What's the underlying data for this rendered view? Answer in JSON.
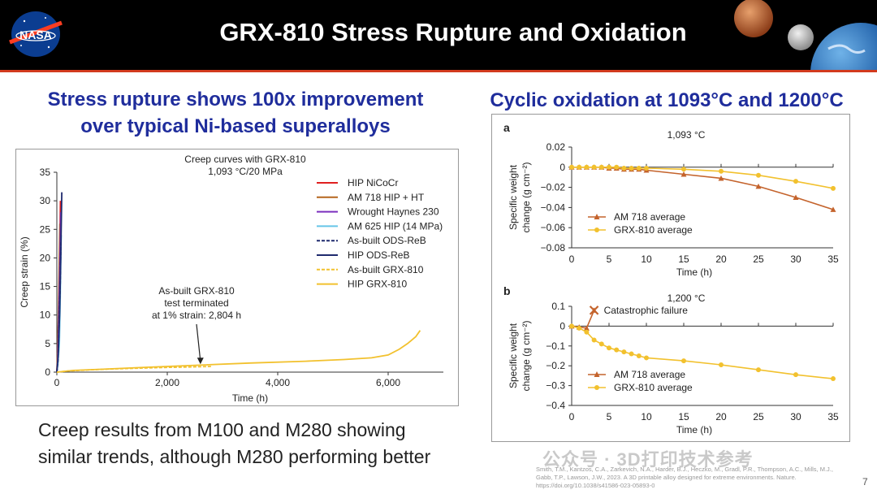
{
  "header": {
    "title": "GRX-810 Stress Rupture and Oxidation",
    "logo_text": "NASA",
    "logo_icon": "nasa-meatball-logo",
    "planets_icon": "planets-mars-moon-earth"
  },
  "left": {
    "subtitle_line1": "Stress rupture shows 100x improvement",
    "subtitle_line2": "over typical Ni-based superalloys",
    "bottom_line1": "Creep results from M100 and M280 showing",
    "bottom_line2": "similar trends, although M280 performing better"
  },
  "right": {
    "subtitle": "Cyclic oxidation at 1093°C and 1200°C"
  },
  "citation": {
    "line1": "Smith, T.M., Kantzos, C.A., Zarkevich, N.A., Harder, B.J., Heczko, M., Gradl, P.R., Thompson, A.C., Mills, M.J.,",
    "line2": "Gabb, T.P., Lawson, J.W., 2023. A 3D printable alloy designed for extreme environments. Nature.",
    "line3": "https://doi.org/10.1038/s41586-023-05893-0"
  },
  "watermark": "公众号 · 3D打印技术参考",
  "page_number": "7",
  "colors": {
    "title_blue": "#1f2d9c",
    "header_bg": "#000000",
    "accent_red": "#d23b1e"
  },
  "chart_data": [
    {
      "type": "line",
      "title": "Creep curves with GRX-810",
      "subtitle": "1,093 °C/20 MPa",
      "xlabel": "Time (h)",
      "ylabel": "Creep strain (%)",
      "xlim": [
        0,
        7000
      ],
      "ylim": [
        0,
        35
      ],
      "xticks": [
        0,
        2000,
        4000,
        6000
      ],
      "xtick_labels": [
        "0",
        "2,000",
        "4,000",
        "6,000"
      ],
      "yticks": [
        0,
        5,
        10,
        15,
        20,
        25,
        30,
        35
      ],
      "legend_position": "top-right",
      "annotation": [
        "As-built GRX-810",
        "test terminated",
        "at 1% strain: 2,804 h"
      ],
      "annotation_point": [
        2600,
        1.1
      ],
      "series": [
        {
          "name": "HIP NiCoCr",
          "color": "#e02020",
          "dash": "",
          "x": [
            0,
            10,
            30,
            50,
            65
          ],
          "y": [
            0,
            2,
            8,
            18,
            30
          ]
        },
        {
          "name": "AM 718 HIP + HT",
          "color": "#b5651d",
          "dash": "",
          "x": [
            0,
            10,
            25,
            40,
            55
          ],
          "y": [
            0,
            3,
            9,
            17,
            26
          ]
        },
        {
          "name": "Wrought Haynes 230",
          "color": "#7b2fbe",
          "dash": "",
          "x": [
            0,
            15,
            30,
            50,
            70
          ],
          "y": [
            0,
            2,
            7,
            16,
            28
          ]
        },
        {
          "name": "AM 625 HIP (14 MPa)",
          "color": "#66c5e8",
          "dash": "",
          "x": [
            0,
            20,
            45,
            60,
            80
          ],
          "y": [
            0,
            1.5,
            5,
            12,
            24
          ]
        },
        {
          "name": "As-built ODS-ReB",
          "color": "#1f2a6e",
          "dash": "4,2",
          "x": [
            0,
            20,
            40,
            60,
            75
          ],
          "y": [
            0,
            2,
            8,
            15,
            23
          ]
        },
        {
          "name": "HIP ODS-ReB",
          "color": "#1f2a6e",
          "dash": "",
          "x": [
            0,
            25,
            50,
            70,
            90
          ],
          "y": [
            0,
            3,
            10,
            20,
            31.5
          ]
        },
        {
          "name": "As-built GRX-810",
          "color": "#f2c12e",
          "dash": "4,2",
          "x": [
            0,
            200,
            600,
            1000,
            1500,
            2000,
            2500,
            2804
          ],
          "y": [
            0,
            0.2,
            0.4,
            0.55,
            0.7,
            0.82,
            0.93,
            1.0
          ]
        },
        {
          "name": "HIP GRX-810",
          "color": "#f2c12e",
          "dash": "",
          "x": [
            0,
            300,
            800,
            1500,
            2500,
            3500,
            4500,
            5200,
            5700,
            6000,
            6200,
            6350,
            6500,
            6580
          ],
          "y": [
            0,
            0.3,
            0.5,
            0.8,
            1.2,
            1.6,
            1.9,
            2.2,
            2.5,
            3.0,
            4.0,
            5.0,
            6.2,
            7.3
          ]
        }
      ]
    },
    {
      "type": "line",
      "panel": "a",
      "title": "1,093 °C",
      "xlabel": "Time (h)",
      "ylabel": "Specific weight change (g cm⁻²)",
      "xlim": [
        0,
        35
      ],
      "ylim": [
        -0.08,
        0.02
      ],
      "xticks": [
        0,
        5,
        10,
        15,
        20,
        25,
        30,
        35
      ],
      "yticks": [
        0.02,
        0,
        -0.02,
        -0.04,
        -0.06,
        -0.08
      ],
      "ytick_labels": [
        "0.02",
        "0",
        "−0.02",
        "−0.04",
        "−0.06",
        "−0.08"
      ],
      "legend_position": "bottom-left",
      "series": [
        {
          "name": "AM 718 average",
          "color": "#c4632c",
          "marker": "triangle",
          "x": [
            0,
            1,
            2,
            3,
            4,
            5,
            6,
            7,
            8,
            9,
            10,
            15,
            20,
            25,
            30,
            35
          ],
          "y": [
            0,
            0,
            0,
            0,
            0,
            -0.001,
            -0.001,
            -0.002,
            -0.002,
            -0.002,
            -0.003,
            -0.007,
            -0.011,
            -0.019,
            -0.03,
            -0.042
          ]
        },
        {
          "name": "GRX-810 average",
          "color": "#f2c12e",
          "marker": "circle",
          "x": [
            0,
            1,
            2,
            3,
            4,
            5,
            6,
            7,
            8,
            9,
            10,
            15,
            20,
            25,
            30,
            35
          ],
          "y": [
            0,
            0,
            0,
            0,
            0,
            0,
            0,
            -0.001,
            -0.001,
            -0.001,
            -0.001,
            -0.002,
            -0.004,
            -0.008,
            -0.014,
            -0.021
          ]
        }
      ]
    },
    {
      "type": "line",
      "panel": "b",
      "title": "1,200 °C",
      "xlabel": "Time (h)",
      "ylabel": "Specific weight change (g cm⁻²)",
      "xlim": [
        0,
        35
      ],
      "ylim": [
        -0.4,
        0.1
      ],
      "xticks": [
        0,
        5,
        10,
        15,
        20,
        25,
        30,
        35
      ],
      "yticks": [
        0.1,
        0,
        -0.1,
        -0.2,
        -0.3,
        -0.4
      ],
      "ytick_labels": [
        "0.1",
        "0",
        "−0.1",
        "−0.2",
        "−0.3",
        "−0.4"
      ],
      "legend_position": "bottom-left",
      "annotation": "Catastrophic failure",
      "annotation_point": [
        3,
        0.08
      ],
      "series": [
        {
          "name": "AM 718 average",
          "color": "#c4632c",
          "marker": "triangle",
          "x": [
            0,
            1,
            2,
            3
          ],
          "y": [
            0,
            -0.005,
            -0.01,
            0.08
          ]
        },
        {
          "name": "GRX-810 average",
          "color": "#f2c12e",
          "marker": "circle",
          "x": [
            0,
            1,
            2,
            3,
            4,
            5,
            6,
            7,
            8,
            9,
            10,
            15,
            20,
            25,
            30,
            35
          ],
          "y": [
            0,
            -0.01,
            -0.03,
            -0.07,
            -0.09,
            -0.11,
            -0.12,
            -0.13,
            -0.14,
            -0.15,
            -0.16,
            -0.175,
            -0.195,
            -0.22,
            -0.245,
            -0.265
          ]
        }
      ]
    }
  ]
}
